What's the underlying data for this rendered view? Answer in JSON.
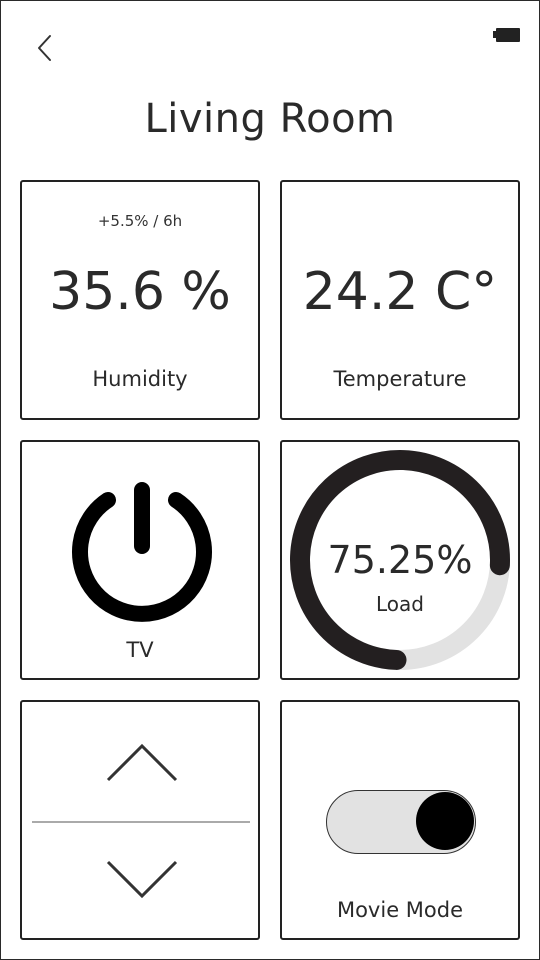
{
  "page": {
    "title": "Living Room"
  },
  "status_bar": {
    "battery_icon": "battery-icon",
    "back_icon": "chevron-left-icon"
  },
  "humidity": {
    "trend": "+5.5% / 6h",
    "value": "35.6 %",
    "label": "Humidity"
  },
  "temperature": {
    "value": "24.2 C°",
    "label": "Temperature"
  },
  "tv": {
    "label": "TV",
    "icon": "power-icon"
  },
  "load": {
    "value_text": "75.25%",
    "label": "Load",
    "percent": 75.25,
    "colors": {
      "progress": "#231f20",
      "track": "#e2e2e2"
    }
  },
  "stepper": {
    "up_icon": "chevron-up-icon",
    "down_icon": "chevron-down-icon"
  },
  "movie_mode": {
    "label": "Movie Mode",
    "enabled": true
  }
}
